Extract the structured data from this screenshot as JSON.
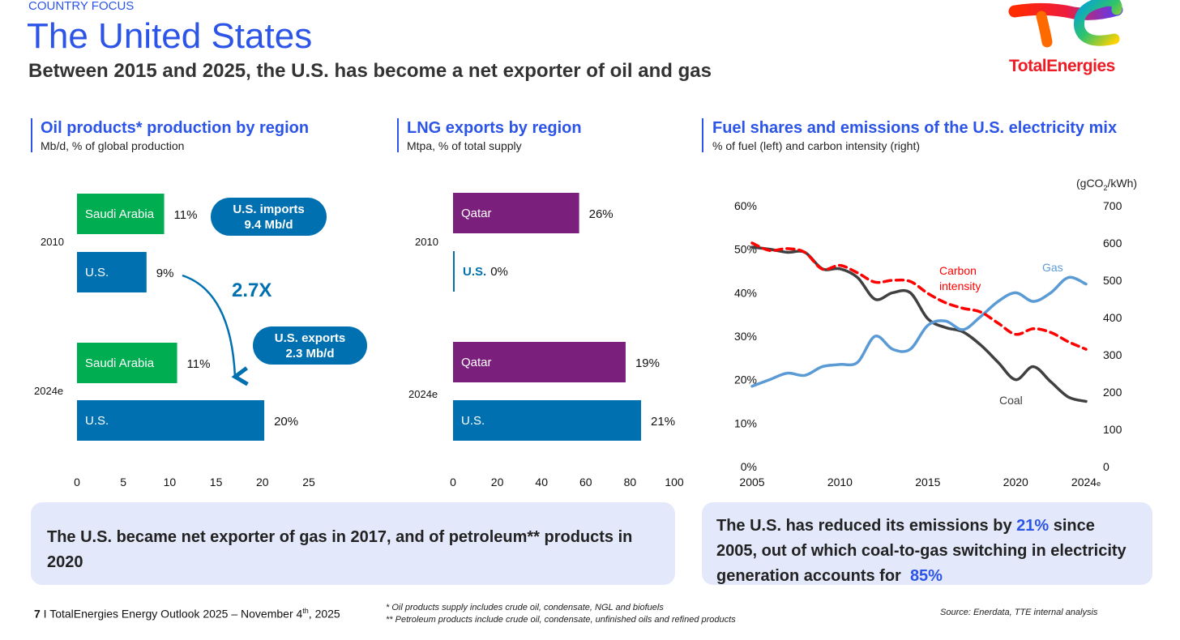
{
  "header": {
    "kicker": "COUNTRY FOCUS",
    "title": "The United States",
    "subtitle": "Between 2015 and 2025, the U.S. has become a net exporter of oil and gas"
  },
  "logo": {
    "wordmark": "TotalEnergies",
    "color": "#ed1c24"
  },
  "colors": {
    "accent": "#2c55e8",
    "us": "#0070b0",
    "saudi": "#00ad50",
    "qatar": "#7a1f7c",
    "gas": "#5b9bd5",
    "coal": "#404040",
    "carbon": "#ff0000"
  },
  "sections": [
    {
      "title": "Oil products* production by region",
      "subtitle": "Mb/d, % of global production"
    },
    {
      "title": "LNG exports by region",
      "subtitle": "Mtpa, % of total supply"
    },
    {
      "title": "Fuel shares and emissions of the U.S. electricity mix",
      "subtitle": "% of fuel (left) and carbon intensity (right)"
    }
  ],
  "annotations": {
    "imports_line1": "U.S. imports",
    "imports_line2": "9.4 Mb/d",
    "exports_line1": "U.S. exports",
    "exports_line2": "2.3 Mb/d",
    "multiplier": "2.7X"
  },
  "chart_data": [
    {
      "type": "bar",
      "orientation": "horizontal",
      "title": "Oil products* production by region",
      "xlim": [
        0,
        25
      ],
      "xticks": [
        "0",
        "5",
        "10",
        "15",
        "20",
        "25"
      ],
      "groups": [
        "2010",
        "2024e"
      ],
      "bars": [
        {
          "group": "2010",
          "label": "Saudi Arabia",
          "value": 9.4,
          "pct": "11%",
          "color": "#00ad50"
        },
        {
          "group": "2010",
          "label": "U.S.",
          "value": 7.5,
          "pct": "9%",
          "color": "#0070b0"
        },
        {
          "group": "2024e",
          "label": "Saudi Arabia",
          "value": 10.8,
          "pct": "11%",
          "color": "#00ad50"
        },
        {
          "group": "2024e",
          "label": "U.S.",
          "value": 20.2,
          "pct": "20%",
          "color": "#0070b0"
        }
      ]
    },
    {
      "type": "bar",
      "orientation": "horizontal",
      "title": "LNG exports by region",
      "xlim": [
        0,
        100
      ],
      "xticks": [
        "0",
        "20",
        "40",
        "60",
        "80",
        "100"
      ],
      "groups": [
        "2010",
        "2024e"
      ],
      "bars": [
        {
          "group": "2010",
          "label": "Qatar",
          "value": 57,
          "pct": "26%",
          "color": "#7a1f7c"
        },
        {
          "group": "2010",
          "label": "U.S.",
          "value": 0,
          "pct": "0%",
          "color": "#0070b0"
        },
        {
          "group": "2024e",
          "label": "Qatar",
          "value": 78,
          "pct": "19%",
          "color": "#7a1f7c"
        },
        {
          "group": "2024e",
          "label": "U.S.",
          "value": 85,
          "pct": "21%",
          "color": "#0070b0"
        }
      ]
    },
    {
      "type": "line",
      "title": "Fuel shares and emissions of the U.S. electricity mix",
      "x": [
        2005,
        2006,
        2007,
        2008,
        2009,
        2010,
        2011,
        2012,
        2013,
        2014,
        2015,
        2016,
        2017,
        2018,
        2019,
        2020,
        2021,
        2022,
        2023,
        2024
      ],
      "xticks": [
        "2005",
        "2010",
        "2015",
        "2020",
        "2024"
      ],
      "xtick_suffix": "e",
      "ylim_left": [
        0,
        60
      ],
      "yticks_left": [
        "0%",
        "10%",
        "20%",
        "30%",
        "40%",
        "50%",
        "60%"
      ],
      "ylim_right": [
        0,
        700
      ],
      "yticks_right": [
        "0",
        "100",
        "200",
        "300",
        "400",
        "500",
        "600",
        "700"
      ],
      "ylabel_right": "(gCO2/kWh)",
      "series": [
        {
          "name": "Coal",
          "axis": "left",
          "color": "#404040",
          "values": [
            50.5,
            50,
            49.3,
            49.3,
            45.5,
            45.5,
            43.5,
            38.5,
            40,
            40,
            34,
            32,
            31,
            28,
            24,
            20,
            23,
            19.5,
            16,
            15
          ]
        },
        {
          "name": "Gas",
          "axis": "left",
          "color": "#5b9bd5",
          "values": [
            18.5,
            20,
            21.5,
            21,
            23,
            23.5,
            24,
            30,
            27,
            27,
            32.5,
            33.5,
            31.5,
            34.5,
            38,
            40,
            38,
            40,
            43.5,
            42
          ]
        },
        {
          "name": "Carbon intensity",
          "axis": "right",
          "color": "#ff0000",
          "dashed": true,
          "values": [
            600,
            580,
            585,
            575,
            530,
            540,
            520,
            495,
            500,
            497,
            465,
            440,
            425,
            415,
            385,
            355,
            370,
            360,
            335,
            315
          ]
        }
      ],
      "labels": {
        "carbon_line1": "Carbon",
        "carbon_line2": "intensity",
        "gas": "Gas",
        "coal": "Coal"
      }
    }
  ],
  "takeaways": {
    "left": "The U.S. became net exporter of gas in 2017, and of petroleum** products in 2020",
    "right_pre": "The U.S. has reduced its emissions by ",
    "right_v1": "21%",
    "right_mid": " since 2005, out of which coal-to-gas switching in electricity generation accounts for ",
    "right_v2": "85%"
  },
  "footer": {
    "page": "7",
    "text": " I TotalEnergies Energy Outlook 2025 – November 4",
    "sup": "th",
    "year": ", 2025",
    "note1": "* Oil products supply includes crude oil, condensate, NGL and biofuels",
    "note2": "** Petroleum products include crude oil, condensate, unfinished oils and refined products",
    "source": "Source:  Enerdata, TTE internal analysis"
  }
}
